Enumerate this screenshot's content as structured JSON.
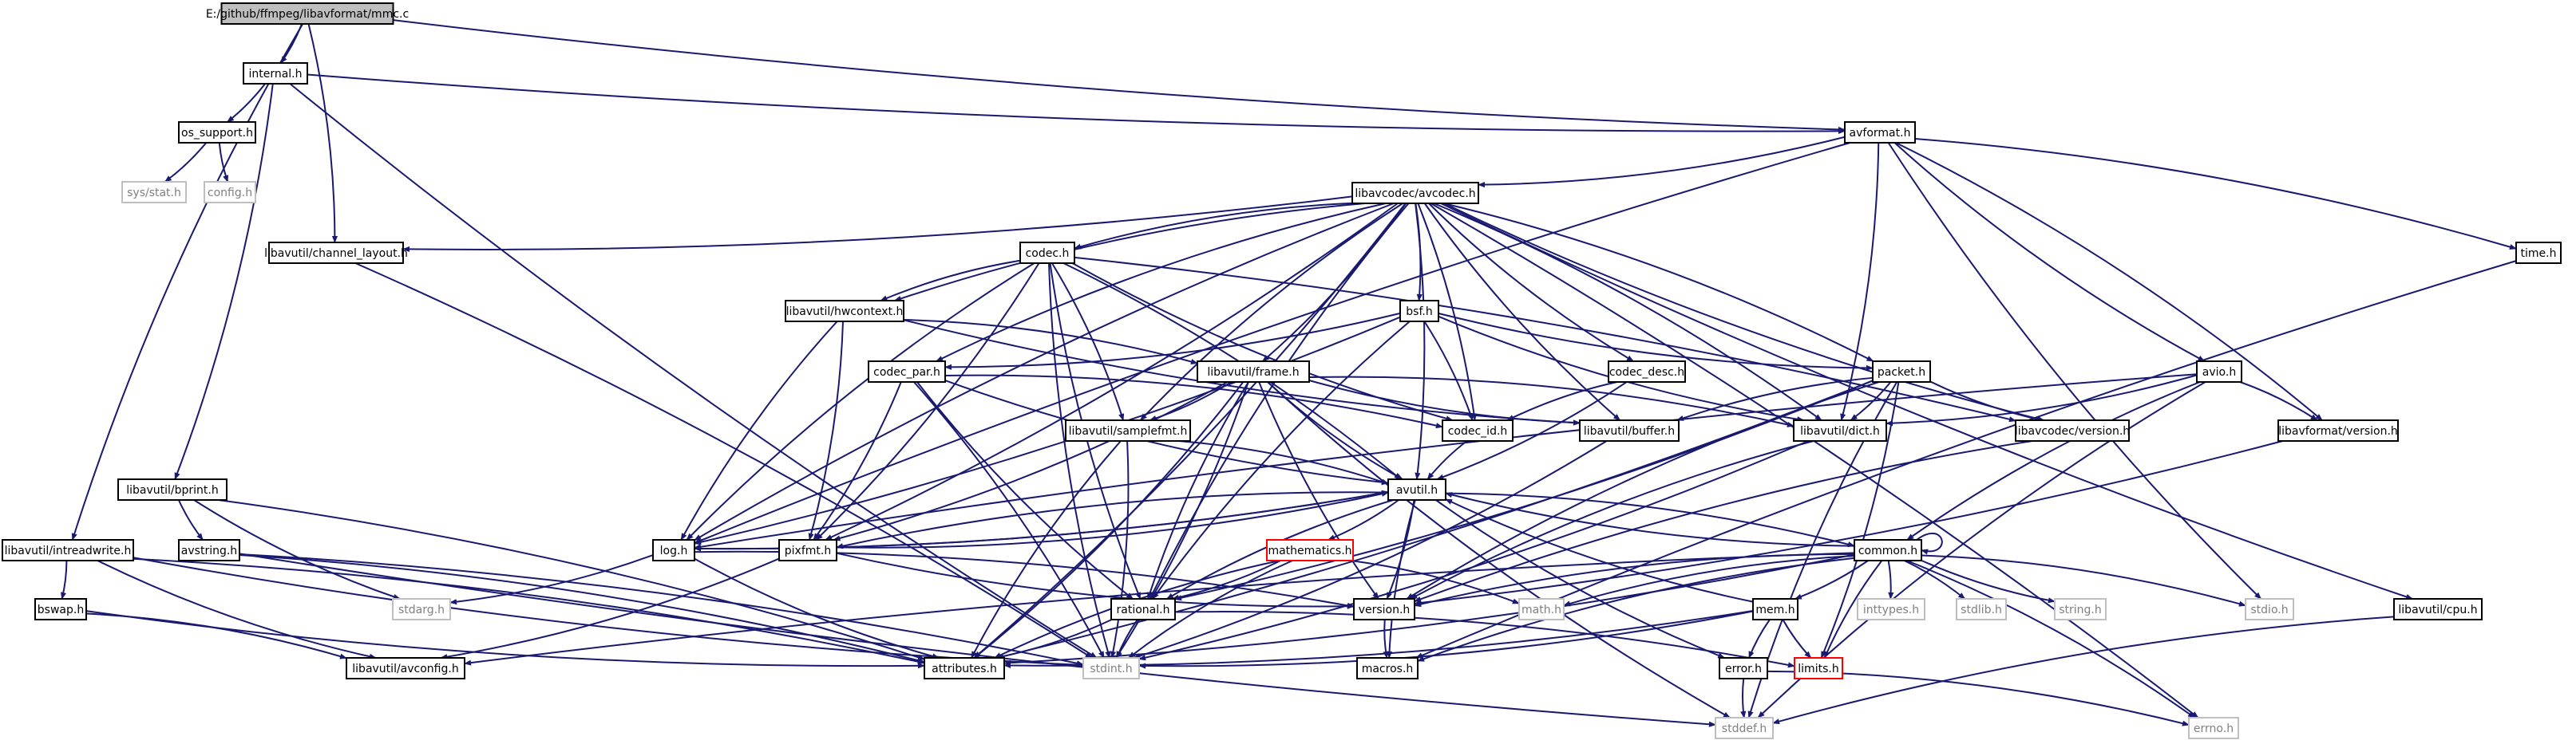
{
  "colors": {
    "edge": "#191970",
    "box": "#000000",
    "root_fill": "#bfbfbf",
    "text": "#000000",
    "gray_box": "#bfbfbf",
    "gray_text": "#808080",
    "red_box": "#ff0000"
  },
  "nodes": [
    {
      "id": "mmc",
      "label": "E:/github/ffmpeg/libavformat/mmc.c",
      "style": "root"
    },
    {
      "id": "internal",
      "label": "internal.h",
      "style": "normal"
    },
    {
      "id": "os_support",
      "label": "os_support.h",
      "style": "normal"
    },
    {
      "id": "sys_stat",
      "label": "sys/stat.h",
      "style": "gray"
    },
    {
      "id": "config",
      "label": "config.h",
      "style": "gray"
    },
    {
      "id": "avformat",
      "label": "avformat.h",
      "style": "normal"
    },
    {
      "id": "time",
      "label": "time.h",
      "style": "normal"
    },
    {
      "id": "avcodec",
      "label": "libavcodec/avcodec.h",
      "style": "normal"
    },
    {
      "id": "channel_layout",
      "label": "libavutil/channel_layout.h",
      "style": "normal"
    },
    {
      "id": "codec",
      "label": "codec.h",
      "style": "normal"
    },
    {
      "id": "hwcontext",
      "label": "libavutil/hwcontext.h",
      "style": "normal"
    },
    {
      "id": "bsf",
      "label": "bsf.h",
      "style": "normal"
    },
    {
      "id": "frame",
      "label": "libavutil/frame.h",
      "style": "normal"
    },
    {
      "id": "codec_par",
      "label": "codec_par.h",
      "style": "normal"
    },
    {
      "id": "codec_desc",
      "label": "codec_desc.h",
      "style": "normal"
    },
    {
      "id": "packet",
      "label": "packet.h",
      "style": "normal"
    },
    {
      "id": "avio",
      "label": "avio.h",
      "style": "normal"
    },
    {
      "id": "samplefmt",
      "label": "libavutil/samplefmt.h",
      "style": "normal"
    },
    {
      "id": "codec_id",
      "label": "codec_id.h",
      "style": "normal"
    },
    {
      "id": "buffer",
      "label": "libavutil/buffer.h",
      "style": "normal"
    },
    {
      "id": "dict",
      "label": "libavutil/dict.h",
      "style": "normal"
    },
    {
      "id": "lavc_version",
      "label": "libavcodec/version.h",
      "style": "normal"
    },
    {
      "id": "lavf_version",
      "label": "libavformat/version.h",
      "style": "normal"
    },
    {
      "id": "bprint",
      "label": "libavutil/bprint.h",
      "style": "normal"
    },
    {
      "id": "avutil",
      "label": "avutil.h",
      "style": "normal"
    },
    {
      "id": "intreadwrite",
      "label": "libavutil/intreadwrite.h",
      "style": "normal"
    },
    {
      "id": "avstring",
      "label": "avstring.h",
      "style": "normal"
    },
    {
      "id": "log",
      "label": "log.h",
      "style": "normal"
    },
    {
      "id": "pixfmt",
      "label": "pixfmt.h",
      "style": "normal"
    },
    {
      "id": "mathematics",
      "label": "mathematics.h",
      "style": "red"
    },
    {
      "id": "common",
      "label": "common.h",
      "style": "normal"
    },
    {
      "id": "bswap",
      "label": "bswap.h",
      "style": "normal"
    },
    {
      "id": "stdarg",
      "label": "stdarg.h",
      "style": "gray"
    },
    {
      "id": "rational",
      "label": "rational.h",
      "style": "normal"
    },
    {
      "id": "version",
      "label": "version.h",
      "style": "normal"
    },
    {
      "id": "math",
      "label": "math.h",
      "style": "gray"
    },
    {
      "id": "mem",
      "label": "mem.h",
      "style": "normal"
    },
    {
      "id": "inttypes",
      "label": "inttypes.h",
      "style": "gray"
    },
    {
      "id": "stdlib",
      "label": "stdlib.h",
      "style": "gray"
    },
    {
      "id": "string",
      "label": "string.h",
      "style": "gray"
    },
    {
      "id": "stdio",
      "label": "stdio.h",
      "style": "gray"
    },
    {
      "id": "cpu",
      "label": "libavutil/cpu.h",
      "style": "normal"
    },
    {
      "id": "avconfig",
      "label": "libavutil/avconfig.h",
      "style": "normal"
    },
    {
      "id": "attributes",
      "label": "attributes.h",
      "style": "normal"
    },
    {
      "id": "stdint",
      "label": "stdint.h",
      "style": "gray"
    },
    {
      "id": "macros",
      "label": "macros.h",
      "style": "normal"
    },
    {
      "id": "error",
      "label": "error.h",
      "style": "normal"
    },
    {
      "id": "limits",
      "label": "limits.h",
      "style": "red"
    },
    {
      "id": "stddef",
      "label": "stddef.h",
      "style": "gray"
    },
    {
      "id": "errno",
      "label": "errno.h",
      "style": "gray"
    }
  ],
  "edges": [
    [
      "mmc",
      "internal"
    ],
    [
      "mmc",
      "avformat"
    ],
    [
      "mmc",
      "channel_layout"
    ],
    [
      "mmc",
      "intreadwrite"
    ],
    [
      "internal",
      "os_support"
    ],
    [
      "internal",
      "avformat"
    ],
    [
      "internal",
      "bprint"
    ],
    [
      "internal",
      "stdint"
    ],
    [
      "os_support",
      "sys_stat"
    ],
    [
      "os_support",
      "config"
    ],
    [
      "avformat",
      "time"
    ],
    [
      "avformat",
      "stdio"
    ],
    [
      "avformat",
      "avcodec"
    ],
    [
      "avformat",
      "avio"
    ],
    [
      "avformat",
      "dict"
    ],
    [
      "avformat",
      "log"
    ],
    [
      "avformat",
      "lavf_version"
    ],
    [
      "time",
      "macros"
    ],
    [
      "avcodec",
      "channel_layout"
    ],
    [
      "avcodec",
      "codec"
    ],
    [
      "avcodec",
      "bsf"
    ],
    [
      "avcodec",
      "hwcontext"
    ],
    [
      "avcodec",
      "frame"
    ],
    [
      "avcodec",
      "codec_desc"
    ],
    [
      "avcodec",
      "packet"
    ],
    [
      "avcodec",
      "samplefmt"
    ],
    [
      "avcodec",
      "codec_id"
    ],
    [
      "avcodec",
      "buffer"
    ],
    [
      "avcodec",
      "dict"
    ],
    [
      "avcodec",
      "lavc_version"
    ],
    [
      "avcodec",
      "avutil"
    ],
    [
      "avcodec",
      "log"
    ],
    [
      "avcodec",
      "pixfmt"
    ],
    [
      "avcodec",
      "rational"
    ],
    [
      "avcodec",
      "attributes"
    ],
    [
      "avcodec",
      "cpu"
    ],
    [
      "avcodec",
      "errno"
    ],
    [
      "avcodec",
      "codec_par"
    ],
    [
      "channel_layout",
      "stdint"
    ],
    [
      "codec",
      "hwcontext"
    ],
    [
      "codec",
      "samplefmt"
    ],
    [
      "codec",
      "codec_id"
    ],
    [
      "codec",
      "avutil"
    ],
    [
      "codec",
      "log"
    ],
    [
      "codec",
      "pixfmt"
    ],
    [
      "codec",
      "rational"
    ],
    [
      "codec",
      "lavc_version"
    ],
    [
      "codec",
      "stdint"
    ],
    [
      "hwcontext",
      "frame"
    ],
    [
      "hwcontext",
      "buffer"
    ],
    [
      "hwcontext",
      "pixfmt"
    ],
    [
      "hwcontext",
      "log"
    ],
    [
      "bsf",
      "codec_par"
    ],
    [
      "bsf",
      "packet"
    ],
    [
      "bsf",
      "codec_id"
    ],
    [
      "bsf",
      "dict"
    ],
    [
      "bsf",
      "log"
    ],
    [
      "bsf",
      "rational"
    ],
    [
      "frame",
      "samplefmt"
    ],
    [
      "frame",
      "buffer"
    ],
    [
      "frame",
      "dict"
    ],
    [
      "frame",
      "avutil"
    ],
    [
      "frame",
      "pixfmt"
    ],
    [
      "frame",
      "rational"
    ],
    [
      "frame",
      "attributes"
    ],
    [
      "frame",
      "version"
    ],
    [
      "frame",
      "stdint"
    ],
    [
      "frame",
      "stddef"
    ],
    [
      "codec_par",
      "codec_id"
    ],
    [
      "codec_par",
      "avutil"
    ],
    [
      "codec_par",
      "pixfmt"
    ],
    [
      "codec_par",
      "rational"
    ],
    [
      "codec_par",
      "stdint"
    ],
    [
      "codec_desc",
      "codec_id"
    ],
    [
      "codec_desc",
      "avutil"
    ],
    [
      "packet",
      "buffer"
    ],
    [
      "packet",
      "dict"
    ],
    [
      "packet",
      "lavc_version"
    ],
    [
      "packet",
      "rational"
    ],
    [
      "packet",
      "version"
    ],
    [
      "packet",
      "attributes"
    ],
    [
      "packet",
      "stddef"
    ],
    [
      "packet",
      "limits"
    ],
    [
      "avio",
      "common"
    ],
    [
      "avio",
      "dict"
    ],
    [
      "avio",
      "log"
    ],
    [
      "avio",
      "lavf_version"
    ],
    [
      "avio",
      "stddef"
    ],
    [
      "samplefmt",
      "avutil"
    ],
    [
      "samplefmt",
      "attributes"
    ],
    [
      "samplefmt",
      "stdint"
    ],
    [
      "codec_id",
      "avutil"
    ],
    [
      "buffer",
      "stdint"
    ],
    [
      "dict",
      "version"
    ],
    [
      "dict",
      "stdint"
    ],
    [
      "lavc_version",
      "version"
    ],
    [
      "lavf_version",
      "version"
    ],
    [
      "bprint",
      "avstring"
    ],
    [
      "bprint",
      "attributes"
    ],
    [
      "bprint",
      "stdarg"
    ],
    [
      "avutil",
      "common"
    ],
    [
      "avutil",
      "error"
    ],
    [
      "avutil",
      "mathematics"
    ],
    [
      "avutil",
      "rational"
    ],
    [
      "avutil",
      "version"
    ],
    [
      "avutil",
      "macros"
    ],
    [
      "avutil",
      "log"
    ],
    [
      "avutil",
      "pixfmt"
    ],
    [
      "intreadwrite",
      "bswap"
    ],
    [
      "intreadwrite",
      "avconfig"
    ],
    [
      "intreadwrite",
      "attributes"
    ],
    [
      "intreadwrite",
      "stdint"
    ],
    [
      "avstring",
      "attributes"
    ],
    [
      "avstring",
      "stddef"
    ],
    [
      "avstring",
      "stdint"
    ],
    [
      "log",
      "avutil"
    ],
    [
      "log",
      "stdarg"
    ],
    [
      "log",
      "attributes"
    ],
    [
      "log",
      "version"
    ],
    [
      "pixfmt",
      "avutil"
    ],
    [
      "pixfmt",
      "avconfig"
    ],
    [
      "pixfmt",
      "version"
    ],
    [
      "mathematics",
      "rational"
    ],
    [
      "mathematics",
      "attributes"
    ],
    [
      "mathematics",
      "math"
    ],
    [
      "mathematics",
      "stdint"
    ],
    [
      "common",
      "avutil"
    ],
    [
      "common",
      "macros"
    ],
    [
      "common",
      "mem"
    ],
    [
      "common",
      "avconfig"
    ],
    [
      "common",
      "attributes"
    ],
    [
      "common",
      "version"
    ],
    [
      "common",
      "inttypes"
    ],
    [
      "common",
      "limits"
    ],
    [
      "common",
      "stdlib"
    ],
    [
      "common",
      "string"
    ],
    [
      "common",
      "stdio"
    ],
    [
      "common",
      "math"
    ],
    [
      "common",
      "errno"
    ],
    [
      "common",
      "common"
    ],
    [
      "bswap",
      "avconfig"
    ],
    [
      "bswap",
      "attributes"
    ],
    [
      "rational",
      "attributes"
    ],
    [
      "rational",
      "stdint"
    ],
    [
      "rational",
      "limits"
    ],
    [
      "version",
      "macros"
    ],
    [
      "mem",
      "attributes"
    ],
    [
      "mem",
      "error"
    ],
    [
      "mem",
      "avutil"
    ],
    [
      "mem",
      "limits"
    ],
    [
      "mem",
      "stdint"
    ],
    [
      "cpu",
      "stddef"
    ],
    [
      "error",
      "errno"
    ],
    [
      "error",
      "stddef"
    ]
  ]
}
